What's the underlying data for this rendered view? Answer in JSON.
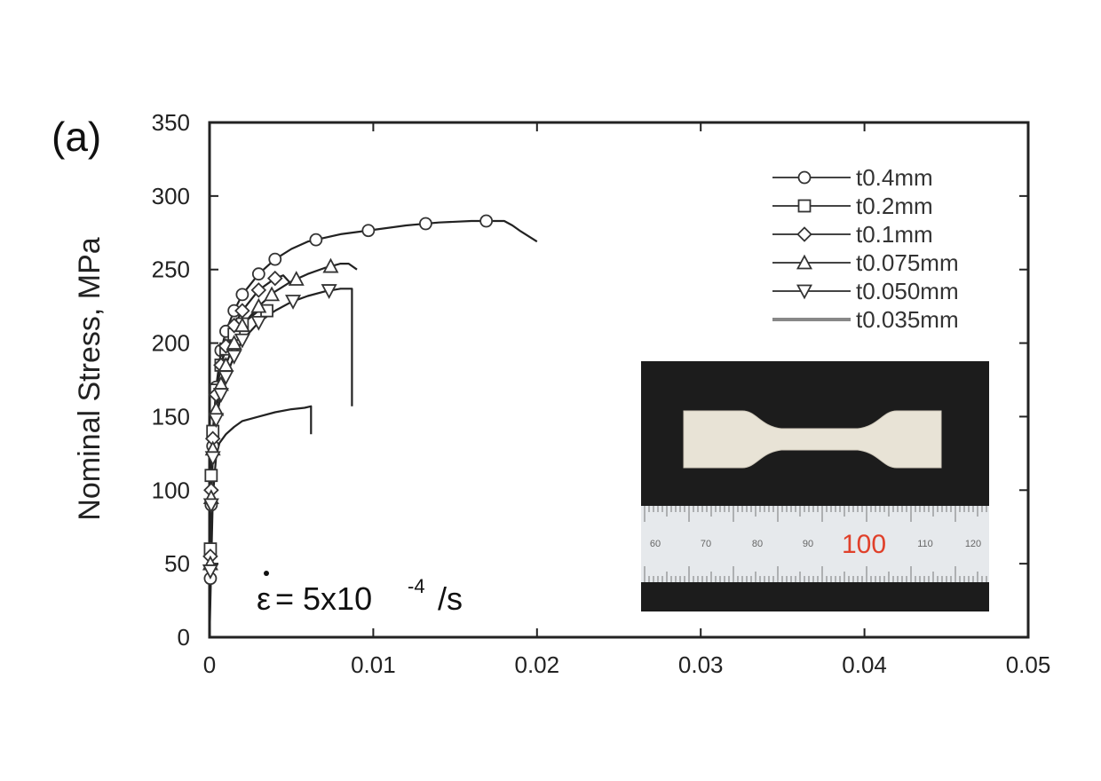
{
  "chart_data": {
    "type": "line",
    "panel_label": "(a)",
    "xlabel": "",
    "ylabel": "Nominal Stress, MPa",
    "xlim": [
      0,
      0.05
    ],
    "ylim": [
      0,
      350
    ],
    "xticks": [
      "0",
      "0.01",
      "0.02",
      "0.03",
      "0.04",
      "0.05"
    ],
    "yticks": [
      "0",
      "50",
      "100",
      "150",
      "200",
      "250",
      "300",
      "350"
    ],
    "xtick_values": [
      0,
      0.01,
      0.02,
      0.03,
      0.04,
      0.05
    ],
    "ytick_values": [
      0,
      50,
      100,
      150,
      200,
      250,
      300,
      350
    ],
    "grid": false,
    "legend_position": "top-right",
    "annotation": {
      "lhs": "ε",
      "text_before_sup": " = 5x10",
      "sup": "-4",
      "text_after_sup": " /s"
    },
    "series": [
      {
        "name": "t0.4mm",
        "marker": "circle",
        "x": [
          0,
          5e-05,
          0.0001,
          0.0002,
          0.0004,
          0.0007,
          0.001,
          0.0015,
          0.002,
          0.003,
          0.004,
          0.005,
          0.006,
          0.008,
          0.01,
          0.012,
          0.014,
          0.016,
          0.017,
          0.018,
          0.0185,
          0.019,
          0.02
        ],
        "y": [
          0,
          40,
          90,
          130,
          170,
          195,
          208,
          222,
          233,
          247,
          257,
          264,
          269,
          274,
          277,
          280,
          282,
          283,
          283,
          283,
          280,
          276,
          269
        ],
        "marker_x": [
          5e-05,
          0.0001,
          0.0002,
          0.0004,
          0.0007,
          0.001,
          0.0015,
          0.002,
          0.003,
          0.004,
          0.0065,
          0.0097,
          0.0132,
          0.0169
        ]
      },
      {
        "name": "t0.2mm",
        "marker": "square",
        "x": [
          0,
          5e-05,
          0.0001,
          0.0002,
          0.0004,
          0.0007,
          0.001,
          0.0015,
          0.002,
          0.003,
          0.0035
        ],
        "y": [
          0,
          60,
          110,
          140,
          168,
          185,
          196,
          206,
          213,
          222,
          222
        ],
        "marker_x": [
          5e-05,
          0.0001,
          0.0002,
          0.0004,
          0.0007,
          0.001,
          0.0015,
          0.002,
          0.0035
        ]
      },
      {
        "name": "t0.1mm",
        "marker": "diamond",
        "x": [
          0,
          5e-05,
          0.0001,
          0.0002,
          0.0004,
          0.0007,
          0.001,
          0.0015,
          0.002,
          0.003,
          0.004,
          0.0045,
          0.005
        ],
        "y": [
          0,
          55,
          100,
          135,
          165,
          185,
          198,
          212,
          222,
          236,
          244,
          246,
          240
        ],
        "marker_x": [
          5e-05,
          0.0001,
          0.0002,
          0.0004,
          0.0007,
          0.001,
          0.0015,
          0.002,
          0.003,
          0.004
        ]
      },
      {
        "name": "t0.075mm",
        "marker": "triangle-up",
        "x": [
          0,
          5e-05,
          0.0001,
          0.0002,
          0.0004,
          0.0007,
          0.001,
          0.0015,
          0.002,
          0.003,
          0.004,
          0.005,
          0.006,
          0.007,
          0.008,
          0.0085,
          0.009
        ],
        "y": [
          0,
          50,
          95,
          128,
          155,
          172,
          185,
          200,
          212,
          225,
          235,
          242,
          247,
          251,
          254,
          254,
          250
        ],
        "marker_x": [
          5e-05,
          0.0001,
          0.0002,
          0.0004,
          0.0007,
          0.001,
          0.0015,
          0.002,
          0.003,
          0.0038,
          0.0053,
          0.0074
        ]
      },
      {
        "name": "t0.050mm",
        "marker": "triangle-down",
        "x": [
          0,
          5e-05,
          0.0001,
          0.0002,
          0.0004,
          0.0007,
          0.001,
          0.0015,
          0.002,
          0.003,
          0.004,
          0.005,
          0.006,
          0.007,
          0.008,
          0.0087,
          0.0087
        ],
        "y": [
          0,
          45,
          90,
          122,
          148,
          165,
          177,
          191,
          202,
          214,
          222,
          228,
          232,
          235,
          237,
          237,
          157
        ],
        "marker_x": [
          5e-05,
          0.0001,
          0.0002,
          0.0004,
          0.0007,
          0.001,
          0.0015,
          0.002,
          0.003,
          0.0051,
          0.0073
        ]
      },
      {
        "name": "t0.035mm",
        "marker": "none",
        "x": [
          0,
          0.0002,
          0.0004,
          0.0006,
          0.001,
          0.0015,
          0.002,
          0.003,
          0.004,
          0.005,
          0.0058,
          0.0062,
          0.0062
        ],
        "y": [
          0,
          95,
          123,
          132,
          138,
          143,
          147,
          150,
          153,
          155,
          156,
          157,
          138
        ],
        "marker_x": []
      }
    ]
  },
  "inset": {
    "ruler_numbers": [
      "60",
      "70",
      "80",
      "90",
      "100",
      "110",
      "120"
    ]
  }
}
